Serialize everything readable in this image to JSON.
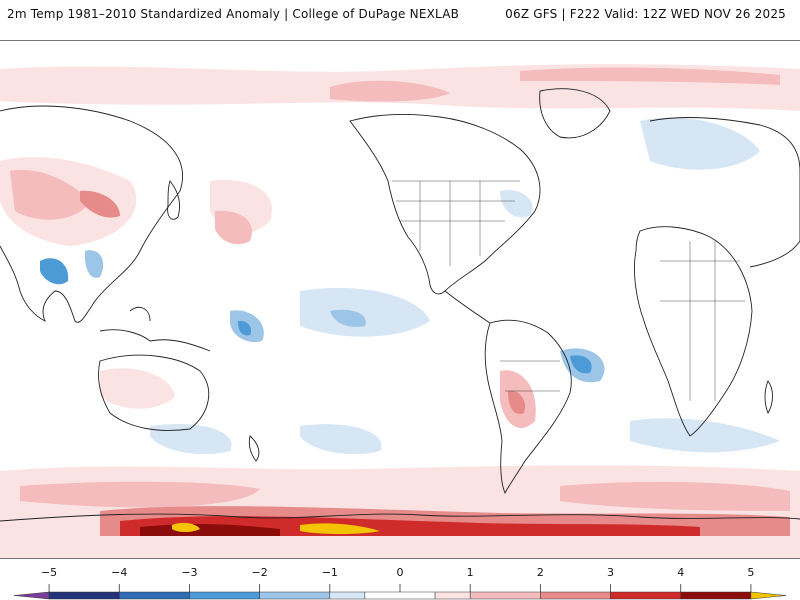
{
  "header": {
    "title": "2m Temp 1981–2010 Standardized Anomaly | College of DuPage NEXLAB",
    "run_info": "06Z GFS | F222 Valid: 12Z WED NOV 26 2025"
  },
  "colorbar": {
    "labels": [
      "−5",
      "−4",
      "−3",
      "−2",
      "−1",
      "0",
      "1",
      "2",
      "3",
      "4",
      "5"
    ],
    "bins": [
      {
        "from": -5.5,
        "to": -5,
        "color": "#7a3d9c"
      },
      {
        "from": -5,
        "to": -4,
        "color": "#22337a"
      },
      {
        "from": -4,
        "to": -3,
        "color": "#2f6cb3"
      },
      {
        "from": -3,
        "to": -2,
        "color": "#4c9ad6"
      },
      {
        "from": -2,
        "to": -1,
        "color": "#9cc5e8"
      },
      {
        "from": -1,
        "to": -0.5,
        "color": "#d7e6f5"
      },
      {
        "from": -0.5,
        "to": 0.5,
        "color": "#ffffff"
      },
      {
        "from": 0.5,
        "to": 1,
        "color": "#fbe3e3"
      },
      {
        "from": 1,
        "to": 2,
        "color": "#f4bcbc"
      },
      {
        "from": 2,
        "to": 3,
        "color": "#e68a8a"
      },
      {
        "from": 3,
        "to": 4,
        "color": "#cf2b2b"
      },
      {
        "from": 4,
        "to": 5,
        "color": "#8c0b0b"
      },
      {
        "from": 5,
        "to": 5.5,
        "color": "#f5c400"
      }
    ]
  },
  "colors": {
    "land_outline": "#222222",
    "warm_light": "#fbe3e3",
    "warm_mid": "#f4bcbc",
    "warm_strong": "#e68a8a",
    "warm_deep": "#cf2b2b",
    "warm_extreme": "#8c0b0b",
    "warm_max": "#f5c400",
    "cold_light": "#d7e6f5",
    "cold_mid": "#9cc5e8",
    "cold_strong": "#4c9ad6"
  }
}
